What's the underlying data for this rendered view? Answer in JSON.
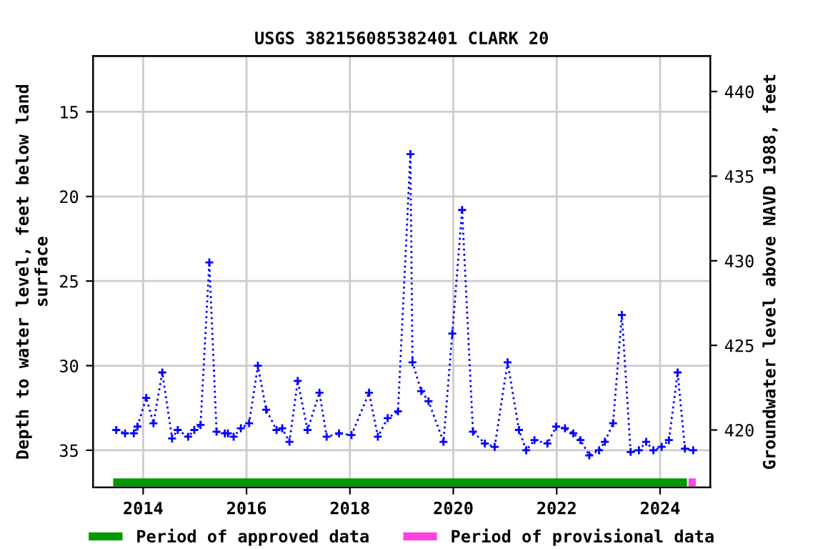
{
  "chart_data": {
    "type": "line",
    "title": "USGS 382156085382401 CLARK 20",
    "ylabel": "Depth to water level, feet below land\nsurface",
    "y2label": "Groundwater level above NAVD 1988, feet",
    "series": [
      {
        "color": "#0000ff",
        "x": [
          2013.48,
          2013.65,
          2013.82,
          2013.89,
          2014.06,
          2014.2,
          2014.37,
          2014.56,
          2014.67,
          2014.87,
          2014.99,
          2015.11,
          2015.28,
          2015.42,
          2015.58,
          2015.64,
          2015.75,
          2015.89,
          2016.05,
          2016.22,
          2016.38,
          2016.58,
          2016.69,
          2016.83,
          2016.99,
          2017.18,
          2017.41,
          2017.55,
          2017.79,
          2018.03,
          2018.37,
          2018.54,
          2018.73,
          2018.93,
          2019.17,
          2019.21,
          2019.38,
          2019.52,
          2019.81,
          2019.98,
          2020.17,
          2020.38,
          2020.61,
          2020.8,
          2021.05,
          2021.27,
          2021.41,
          2021.57,
          2021.82,
          2021.99,
          2022.16,
          2022.32,
          2022.46,
          2022.63,
          2022.82,
          2022.93,
          2023.09,
          2023.26,
          2023.43,
          2023.59,
          2023.73,
          2023.87,
          2024.03,
          2024.17,
          2024.34,
          2024.48,
          2024.64
        ],
        "values": [
          33.8,
          34.0,
          34.0,
          33.6,
          31.9,
          33.4,
          30.4,
          34.3,
          33.8,
          34.2,
          33.8,
          33.5,
          23.9,
          33.9,
          34.0,
          34.0,
          34.2,
          33.7,
          33.4,
          30.0,
          32.6,
          33.8,
          33.7,
          34.5,
          30.9,
          33.8,
          31.6,
          34.2,
          34.0,
          34.1,
          31.6,
          34.2,
          33.1,
          32.7,
          17.5,
          29.8,
          31.5,
          32.1,
          34.5,
          28.1,
          20.8,
          33.9,
          34.6,
          34.8,
          29.8,
          33.8,
          35.0,
          34.4,
          34.6,
          33.6,
          33.7,
          34.0,
          34.4,
          35.3,
          35.0,
          34.5,
          33.4,
          27.0,
          35.1,
          35.0,
          34.5,
          35.0,
          34.8,
          34.4,
          30.4,
          34.9,
          35.0
        ]
      },
      {
        "name": "Period of approved data",
        "type": "line",
        "marker": "none",
        "line_style": "solid",
        "color": "#009900",
        "x": [
          2013.42,
          2024.52
        ],
        "values": [
          36.9,
          36.9
        ]
      },
      {
        "name": "Period of provisional data",
        "type": "line",
        "marker": "none",
        "line_style": "solid",
        "color": "#ff44dd",
        "x": [
          2024.55,
          2024.69
        ],
        "values": [
          36.9,
          36.9
        ]
      }
    ],
    "marker": "cross",
    "line_style": "dotted",
    "grid": true,
    "legend": "bottom",
    "xlim": [
      2013.03,
      2024.97
    ],
    "xticks": [
      2014,
      2016,
      2018,
      2020,
      2022,
      2024
    ],
    "ylim": [
      37.2,
      11.7
    ],
    "yticks": [
      15,
      20,
      25,
      30,
      35
    ],
    "y2lim": [
      416.6,
      442.1
    ],
    "y2ticks": [
      420,
      425,
      430,
      435,
      440
    ]
  }
}
